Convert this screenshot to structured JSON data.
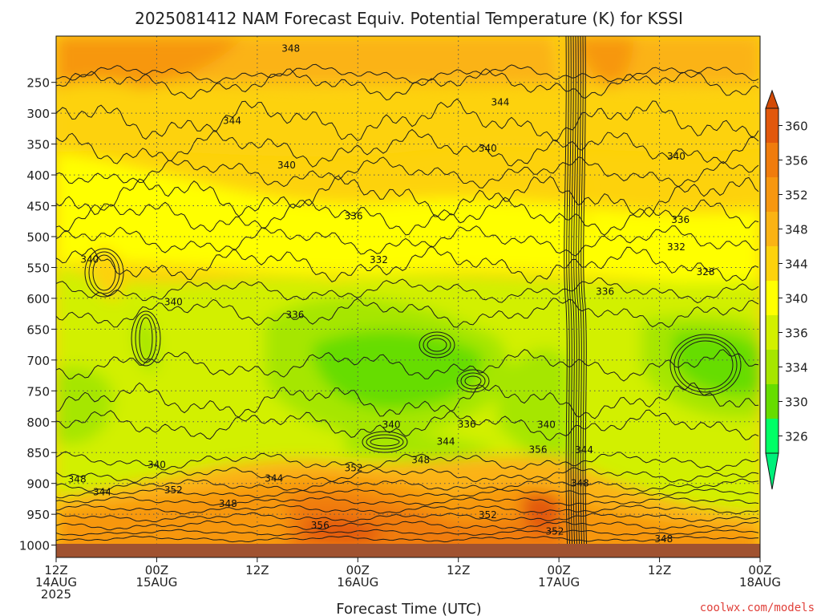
{
  "chart_data": {
    "type": "heatmap",
    "title": "2025081412 NAM Forecast Equiv. Potential Temperature (K) for KSSI",
    "xlabel": "Forecast Time (UTC)",
    "ylabel": "",
    "x_ticks": [
      {
        "hour": 0,
        "line1": "12Z",
        "line2": "14AUG",
        "line3": "2025"
      },
      {
        "hour": 12,
        "line1": "00Z",
        "line2": "15AUG",
        "line3": ""
      },
      {
        "hour": 24,
        "line1": "12Z",
        "line2": "",
        "line3": ""
      },
      {
        "hour": 36,
        "line1": "00Z",
        "line2": "16AUG",
        "line3": ""
      },
      {
        "hour": 48,
        "line1": "12Z",
        "line2": "",
        "line3": ""
      },
      {
        "hour": 60,
        "line1": "00Z",
        "line2": "17AUG",
        "line3": ""
      },
      {
        "hour": 72,
        "line1": "12Z",
        "line2": "",
        "line3": ""
      },
      {
        "hour": 84,
        "line1": "00Z",
        "line2": "18AUG",
        "line3": ""
      }
    ],
    "y_ticks": [
      "250",
      "300",
      "350",
      "400",
      "450",
      "500",
      "550",
      "600",
      "650",
      "700",
      "750",
      "800",
      "850",
      "900",
      "950",
      "1000"
    ],
    "y_tick_values": [
      250,
      300,
      350,
      400,
      450,
      500,
      550,
      600,
      650,
      700,
      750,
      800,
      850,
      900,
      950,
      1000
    ],
    "xlim_hours": [
      0,
      84
    ],
    "ylim_hpa": [
      175,
      1020
    ],
    "colorbar": {
      "labels": [
        "360",
        "356",
        "352",
        "348",
        "344",
        "340",
        "336",
        "334",
        "330",
        "326"
      ],
      "colors": [
        "#e2580c",
        "#f07c0c",
        "#f7970f",
        "#fbb313",
        "#fdd20c",
        "#ffff00",
        "#d2f000",
        "#a6e600",
        "#66dd00",
        "#00ff66"
      ]
    },
    "contour_labels": [
      {
        "text": "348",
        "h": 28.0,
        "p": 195
      },
      {
        "text": "344",
        "h": 21.0,
        "p": 312
      },
      {
        "text": "344",
        "h": 53.0,
        "p": 282
      },
      {
        "text": "340",
        "h": 27.5,
        "p": 384
      },
      {
        "text": "340",
        "h": 51.5,
        "p": 357
      },
      {
        "text": "340",
        "h": 74.0,
        "p": 370
      },
      {
        "text": "336",
        "h": 35.5,
        "p": 467
      },
      {
        "text": "336",
        "h": 74.5,
        "p": 473
      },
      {
        "text": "332",
        "h": 38.5,
        "p": 538
      },
      {
        "text": "332",
        "h": 74.0,
        "p": 517
      },
      {
        "text": "328",
        "h": 77.5,
        "p": 557
      },
      {
        "text": "336",
        "h": 28.5,
        "p": 627
      },
      {
        "text": "336",
        "h": 65.5,
        "p": 589
      },
      {
        "text": "340",
        "h": 4.0,
        "p": 537
      },
      {
        "text": "340",
        "h": 14.0,
        "p": 606
      },
      {
        "text": "340",
        "h": 40.0,
        "p": 805
      },
      {
        "text": "336",
        "h": 49.0,
        "p": 804
      },
      {
        "text": "344",
        "h": 46.5,
        "p": 832
      },
      {
        "text": "348",
        "h": 43.5,
        "p": 862
      },
      {
        "text": "340",
        "h": 12.0,
        "p": 870
      },
      {
        "text": "352",
        "h": 35.5,
        "p": 875
      },
      {
        "text": "352",
        "h": 14.0,
        "p": 911
      },
      {
        "text": "348",
        "h": 2.5,
        "p": 893
      },
      {
        "text": "344",
        "h": 5.5,
        "p": 914
      },
      {
        "text": "348",
        "h": 20.5,
        "p": 933
      },
      {
        "text": "344",
        "h": 26.0,
        "p": 892
      },
      {
        "text": "356",
        "h": 57.5,
        "p": 845
      },
      {
        "text": "340",
        "h": 58.5,
        "p": 805
      },
      {
        "text": "344",
        "h": 63.0,
        "p": 846
      },
      {
        "text": "348",
        "h": 62.5,
        "p": 900
      },
      {
        "text": "352",
        "h": 51.5,
        "p": 951
      },
      {
        "text": "352",
        "h": 59.5,
        "p": 978
      },
      {
        "text": "356",
        "h": 31.5,
        "p": 968
      },
      {
        "text": "348",
        "h": 72.5,
        "p": 990
      }
    ]
  },
  "credit": "coolwx.com/models"
}
